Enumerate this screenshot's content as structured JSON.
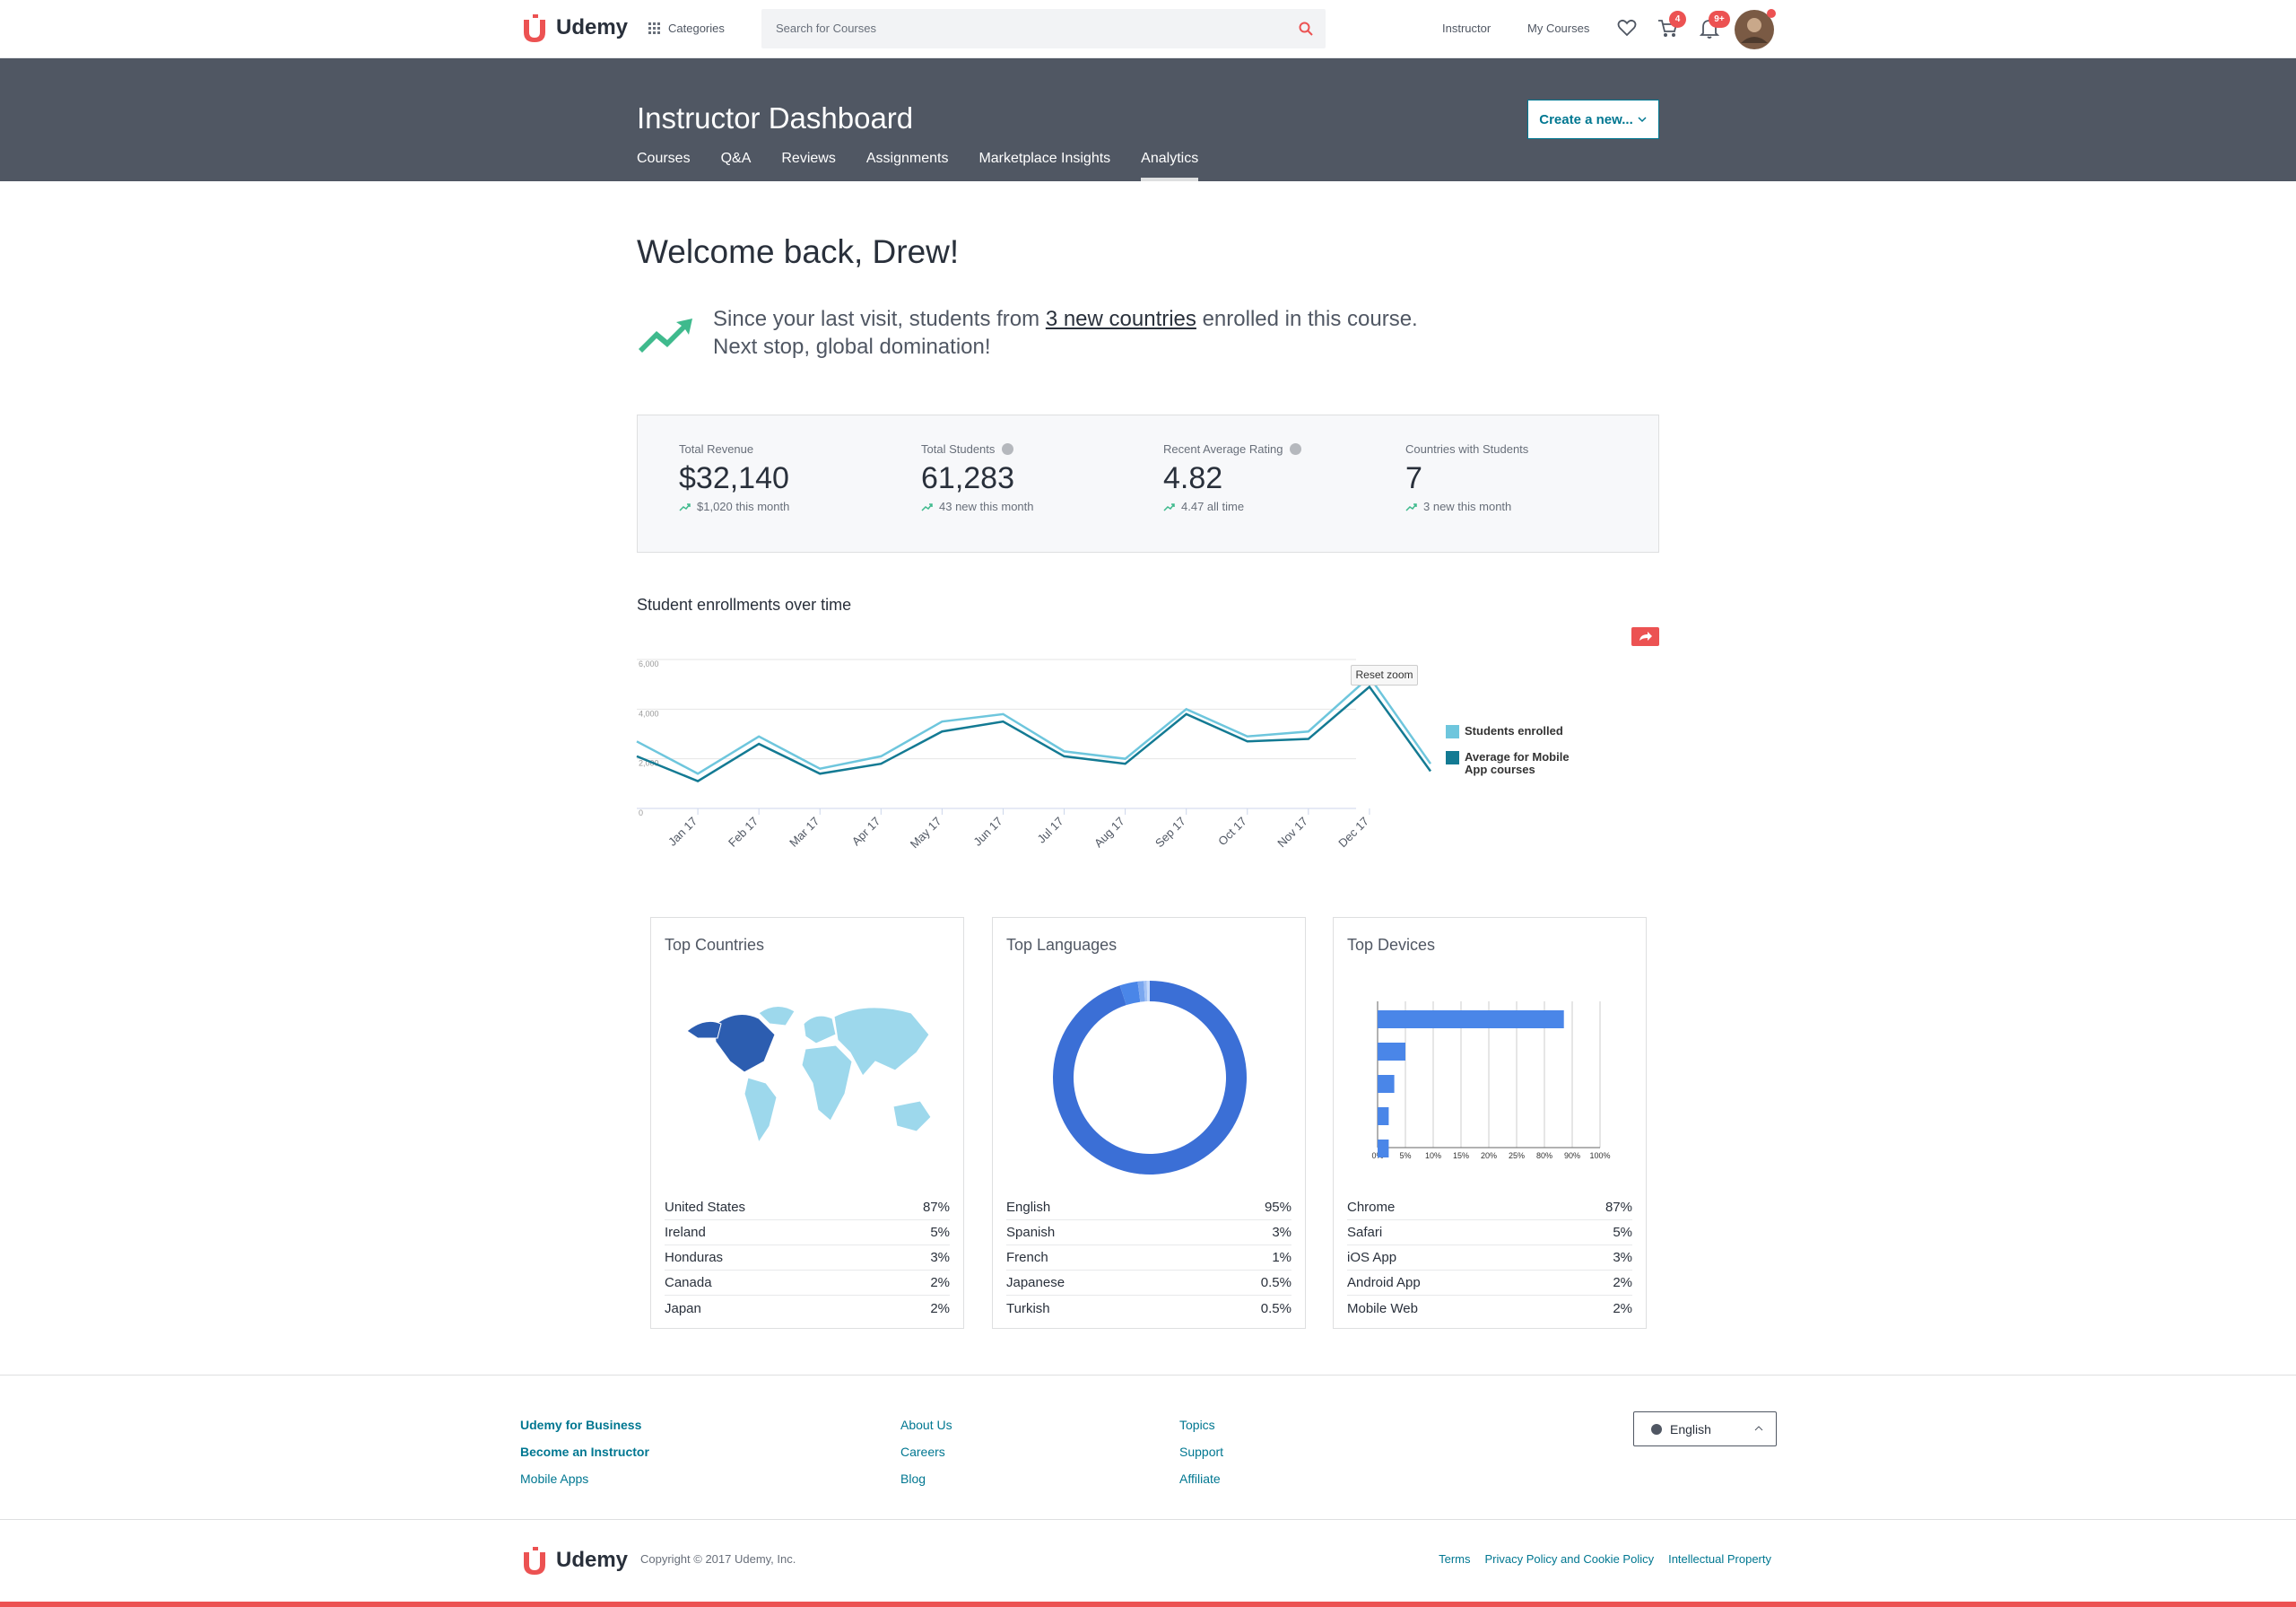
{
  "nav": {
    "brand": "Udemy",
    "categories": "Categories",
    "search_placeholder": "Search for Courses",
    "links": [
      "Instructor",
      "My Courses"
    ],
    "cart_badge": 4,
    "notification_badge": "9+"
  },
  "header": {
    "title": "Instructor Dashboard",
    "tabs": [
      "Courses",
      "Q&A",
      "Reviews",
      "Assignments",
      "Marketplace Insights",
      "Analytics"
    ],
    "active_tab": "Analytics",
    "button": "Create a new..."
  },
  "welcome": {
    "heading": "Welcome back, Drew!",
    "before_link": "Since your last visit, students from ",
    "link": "3 new countries",
    "after_link": " enrolled in this course.",
    "line2": "Next stop, global domination!"
  },
  "stats": [
    {
      "label": "Total Revenue",
      "value": "$32,140",
      "note": "$1,020 this month",
      "help_icon": false
    },
    {
      "label": "Total Students",
      "value": "61,283",
      "note": "43 new this month",
      "help_icon": true
    },
    {
      "label": "Recent Average Rating",
      "value": "4.82",
      "note": "4.47 all time",
      "help_icon": true
    },
    {
      "label": "Countries with Students",
      "value": "7",
      "note": "3 new this month",
      "help_icon": false
    }
  ],
  "reset_zoom": "Reset zoom",
  "chart_data": [
    {
      "type": "line",
      "title": "Student enrollments over time",
      "categories": [
        null,
        "Jan 17",
        "Feb 17",
        "Mar 17",
        "Apr 17",
        "May 17",
        "Jun 17",
        "Jul 17",
        "Aug 17",
        "Sep 17",
        "Oct 17",
        "Nov 17",
        "Dec 17",
        null
      ],
      "series": [
        {
          "name": "Students enrolled",
          "color": "#6ec6dd",
          "values": [
            2700,
            1400,
            2900,
            1600,
            2100,
            3500,
            3800,
            2300,
            2000,
            4000,
            2900,
            3100,
            5300,
            1800
          ]
        },
        {
          "name": "Average for Mobile App courses",
          "color": "#137a93",
          "values": [
            2100,
            1100,
            2600,
            1400,
            1800,
            3100,
            3500,
            2100,
            1800,
            3800,
            2700,
            2800,
            4900,
            1500
          ]
        }
      ],
      "ylim": [
        0,
        6000
      ],
      "yticks": [
        0,
        {
          "value": 2000,
          "label": "2,000"
        },
        {
          "value": 4000,
          "label": "4,000"
        },
        {
          "value": 6000,
          "label": "6,000"
        }
      ],
      "grid": true,
      "legend": "right"
    }
  ],
  "cards": [
    {
      "title": "Top Countries",
      "rows": [
        {
          "name": "United States",
          "value": 87,
          "label": "87%"
        },
        {
          "name": "Ireland",
          "value": 5,
          "label": "5%"
        },
        {
          "name": "Honduras",
          "value": 3,
          "label": "3%"
        },
        {
          "name": "Canada",
          "value": 2,
          "label": "2%"
        },
        {
          "name": "Japan",
          "value": 2,
          "label": "2%"
        }
      ]
    },
    {
      "title": "Top Languages",
      "rows": [
        {
          "name": "English",
          "value": 95,
          "label": "95%"
        },
        {
          "name": "Spanish",
          "value": 3,
          "label": "3%"
        },
        {
          "name": "French",
          "value": 1,
          "label": "1%"
        },
        {
          "name": "Japanese",
          "value": 0.5,
          "label": "0.5%"
        },
        {
          "name": "Turkish",
          "value": 0.5,
          "label": "0.5%"
        }
      ],
      "colors": [
        "#3b6fd6",
        "#4a86e8",
        "#7aa7ef",
        "#a3c2f5",
        "#c7dbfa"
      ]
    },
    {
      "title": "Top Devices",
      "rows": [
        {
          "name": "Chrome",
          "value": 87,
          "label": "87%"
        },
        {
          "name": "Safari",
          "value": 5,
          "label": "5%"
        },
        {
          "name": "iOS App",
          "value": 3,
          "label": "3%"
        },
        {
          "name": "Android App",
          "value": 2,
          "label": "2%"
        },
        {
          "name": "Mobile Web",
          "value": 2,
          "label": "2%"
        }
      ],
      "color": "#4a86e8",
      "axis_ticks": [
        {
          "value": 0,
          "label": "0%"
        },
        {
          "value": 5,
          "label": "5%"
        },
        {
          "value": 10,
          "label": "10%"
        },
        {
          "value": 15,
          "label": "15%"
        },
        {
          "value": 20,
          "label": "20%"
        },
        {
          "value": 25,
          "label": "25%"
        },
        {
          "value": 80,
          "label": "80%"
        },
        {
          "value": 90,
          "label": "90%"
        },
        {
          "value": 100,
          "label": "100%"
        }
      ]
    }
  ],
  "footer": {
    "columns": [
      [
        "Udemy for Business",
        "Become an Instructor",
        "Mobile Apps"
      ],
      [
        "About Us",
        "Careers",
        "Blog"
      ],
      [
        "Topics",
        "Support",
        "Affiliate"
      ]
    ],
    "language": "English",
    "copyright": "Copyright © 2017 Udemy, Inc.",
    "links": [
      "Terms",
      "Privacy Policy and Cookie Policy",
      "Intellectual Property"
    ]
  }
}
